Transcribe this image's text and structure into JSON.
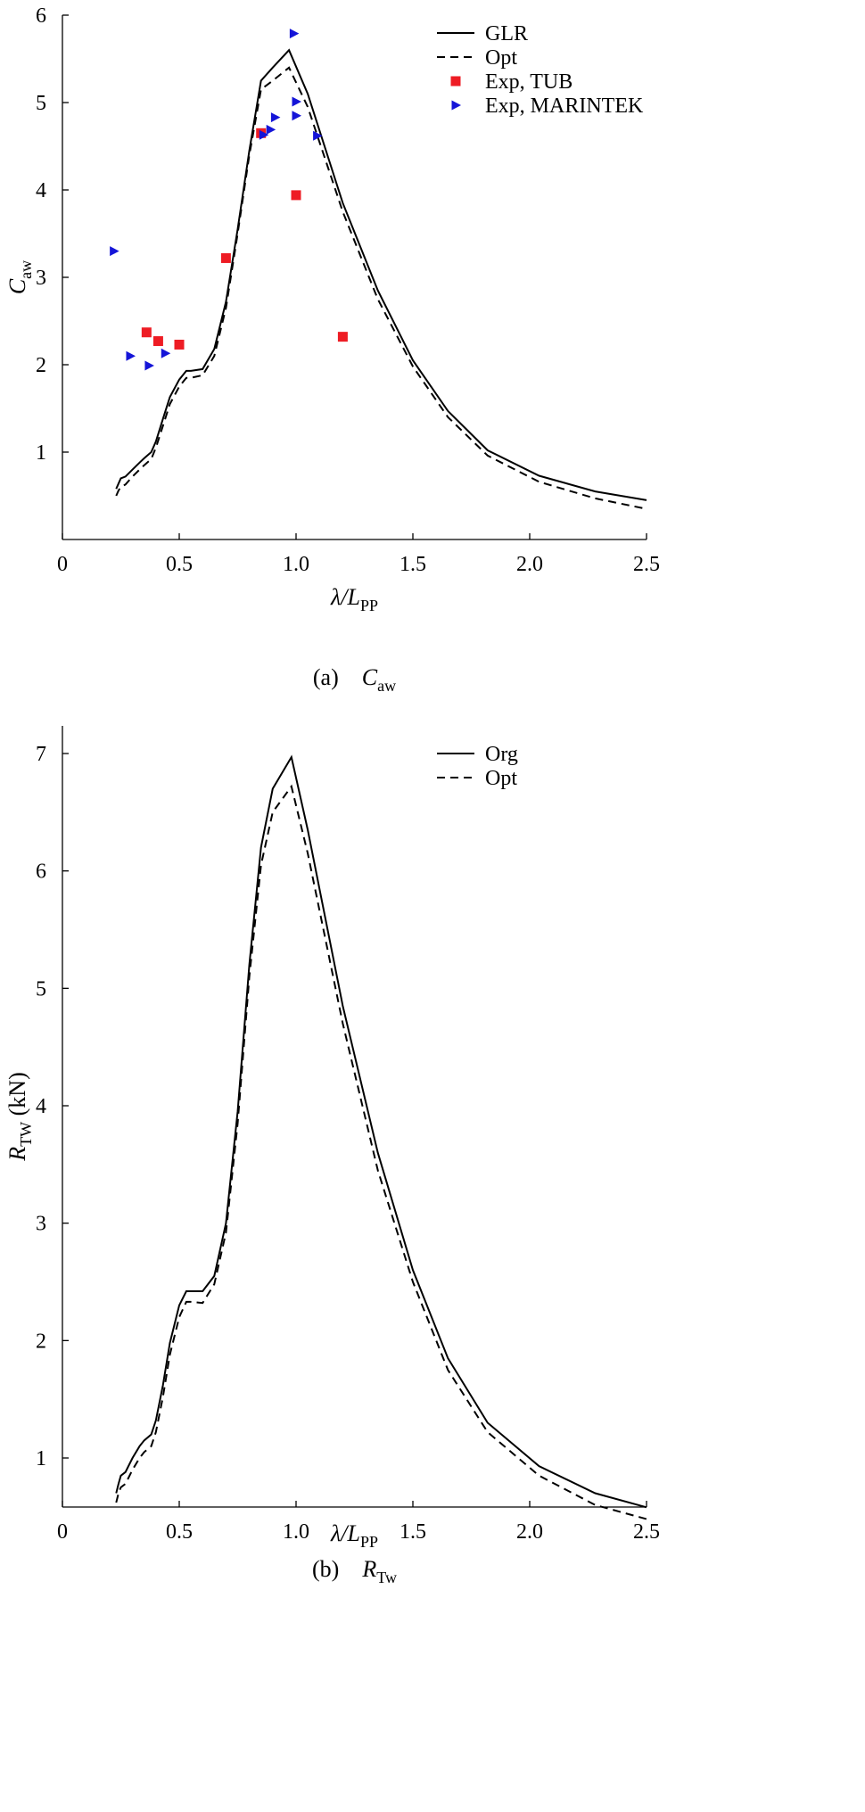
{
  "chart_data": [
    {
      "type": "line",
      "caption": {
        "prefix": "(a)",
        "symbol": "C",
        "subscript": "aw"
      },
      "xlabel": {
        "symbol": "λ/L",
        "subscript": "PP"
      },
      "ylabel": {
        "symbol": "C",
        "subscript": "aw"
      },
      "xlim": [
        0,
        2.5
      ],
      "ylim": [
        0,
        6
      ],
      "xticks": [
        "0",
        "0.5",
        "1.0",
        "1.5",
        "2.0",
        "2.5"
      ],
      "yticks": [
        "1",
        "2",
        "3",
        "4",
        "5",
        "6"
      ],
      "legend_position": "top-right",
      "series": [
        {
          "name": "GLR",
          "style": "solid",
          "x": [
            0.23,
            0.24,
            0.25,
            0.27,
            0.3,
            0.33,
            0.35,
            0.38,
            0.4,
            0.43,
            0.46,
            0.5,
            0.53,
            0.55,
            0.6,
            0.65,
            0.7,
            0.75,
            0.8,
            0.85,
            0.9,
            0.97,
            1.05,
            1.2,
            1.35,
            1.5,
            1.65,
            1.82,
            2.04,
            2.28,
            2.5
          ],
          "y": [
            0.58,
            0.64,
            0.7,
            0.72,
            0.8,
            0.88,
            0.93,
            1.0,
            1.12,
            1.38,
            1.63,
            1.83,
            1.93,
            1.93,
            1.95,
            2.18,
            2.72,
            3.55,
            4.45,
            5.25,
            5.4,
            5.6,
            5.1,
            3.85,
            2.85,
            2.05,
            1.47,
            1.02,
            0.73,
            0.55,
            0.45
          ]
        },
        {
          "name": "Opt",
          "style": "dashed",
          "x": [
            0.23,
            0.24,
            0.25,
            0.27,
            0.3,
            0.33,
            0.35,
            0.38,
            0.4,
            0.43,
            0.46,
            0.5,
            0.53,
            0.55,
            0.6,
            0.65,
            0.7,
            0.75,
            0.8,
            0.85,
            0.9,
            0.97,
            1.05,
            1.2,
            1.35,
            1.5,
            1.65,
            1.82,
            2.04,
            2.28,
            2.5
          ],
          "y": [
            0.5,
            0.56,
            0.6,
            0.63,
            0.72,
            0.8,
            0.85,
            0.92,
            1.05,
            1.3,
            1.55,
            1.75,
            1.85,
            1.85,
            1.88,
            2.1,
            2.65,
            3.5,
            4.4,
            5.15,
            5.25,
            5.4,
            4.95,
            3.75,
            2.75,
            1.98,
            1.4,
            0.96,
            0.66,
            0.47,
            0.35
          ]
        },
        {
          "name": "Exp, TUB",
          "style": "square",
          "color": "#ee1c24",
          "x": [
            0.36,
            0.41,
            0.5,
            0.7,
            0.85,
            1.0,
            1.2
          ],
          "y": [
            2.37,
            2.27,
            2.23,
            3.22,
            4.65,
            3.94,
            2.32
          ]
        },
        {
          "name": "Exp, MARINTEK",
          "style": "triangle",
          "color": "#1515d8",
          "x": [
            0.22,
            0.29,
            0.37,
            0.44,
            0.86,
            0.89,
            0.91,
            0.99,
            1.0,
            1.0,
            1.09
          ],
          "y": [
            3.3,
            2.1,
            1.99,
            2.13,
            4.63,
            4.69,
            4.83,
            5.79,
            5.01,
            4.85,
            4.62
          ]
        }
      ]
    },
    {
      "type": "line",
      "caption": {
        "prefix": "(b)",
        "symbol": "R",
        "subscript": "Tw"
      },
      "xlabel": {
        "symbol": "λ/L",
        "subscript": "PP"
      },
      "ylabel": {
        "symbol": "R",
        "subscript": "TW",
        "unit": "(kN)"
      },
      "xlim": [
        0,
        2.5
      ],
      "ylim": [
        0.5,
        7
      ],
      "xticks": [
        "0",
        "0.5",
        "1.0",
        "1.5",
        "2.0",
        "2.5"
      ],
      "yticks": [
        "1",
        "2",
        "3",
        "4",
        "5",
        "6",
        "7"
      ],
      "legend_position": "top-right",
      "series": [
        {
          "name": "Org",
          "style": "solid",
          "x": [
            0.23,
            0.24,
            0.25,
            0.27,
            0.3,
            0.33,
            0.35,
            0.38,
            0.4,
            0.43,
            0.46,
            0.5,
            0.53,
            0.55,
            0.6,
            0.65,
            0.7,
            0.75,
            0.8,
            0.85,
            0.9,
            0.98,
            1.05,
            1.2,
            1.35,
            1.5,
            1.65,
            1.82,
            2.04,
            2.28,
            2.5
          ],
          "y": [
            0.7,
            0.78,
            0.85,
            0.88,
            1.0,
            1.1,
            1.15,
            1.2,
            1.32,
            1.62,
            1.98,
            2.3,
            2.42,
            2.42,
            2.42,
            2.55,
            3.0,
            3.95,
            5.2,
            6.2,
            6.7,
            6.97,
            6.35,
            4.85,
            3.6,
            2.6,
            1.85,
            1.3,
            0.93,
            0.7,
            0.58
          ]
        },
        {
          "name": "Opt",
          "style": "dashed",
          "x": [
            0.23,
            0.24,
            0.25,
            0.27,
            0.3,
            0.33,
            0.35,
            0.38,
            0.4,
            0.43,
            0.46,
            0.5,
            0.53,
            0.55,
            0.6,
            0.65,
            0.7,
            0.75,
            0.8,
            0.85,
            0.9,
            0.98,
            1.05,
            1.2,
            1.35,
            1.5,
            1.65,
            1.82,
            2.04,
            2.28,
            2.5
          ],
          "y": [
            0.62,
            0.7,
            0.75,
            0.78,
            0.9,
            1.0,
            1.05,
            1.1,
            1.22,
            1.52,
            1.88,
            2.2,
            2.33,
            2.33,
            2.32,
            2.48,
            2.92,
            3.85,
            5.1,
            6.05,
            6.5,
            6.72,
            6.15,
            4.7,
            3.45,
            2.5,
            1.75,
            1.22,
            0.85,
            0.6,
            0.48
          ]
        }
      ]
    }
  ]
}
